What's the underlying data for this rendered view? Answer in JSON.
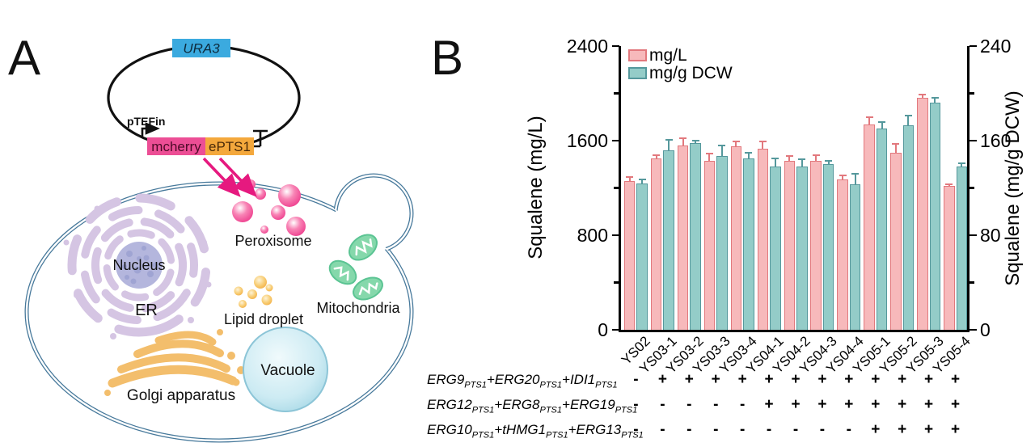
{
  "panelA": {
    "label": "A",
    "plasmid": {
      "marker": "URA3",
      "promoter": "pTEFin",
      "gene1": "mcherry",
      "gene2": "ePTS1"
    },
    "organelles": {
      "nucleus": "Nucleus",
      "er": "ER",
      "peroxisome": "Peroxisome",
      "lipid": "Lipid droplet",
      "mitochondria": "Mitochondria",
      "vacuole": "Vacuole",
      "golgi": "Golgi apparatus"
    },
    "colors": {
      "marker_box": "#3BAADF",
      "gene1_box": "#EC4E95",
      "gene2_box": "#F4A83C",
      "arrow": "#E6197F",
      "cell_outline": "#47799B"
    }
  },
  "panelB": {
    "label": "B"
  },
  "chart_data": {
    "type": "bar",
    "title": "",
    "categories": [
      "YS02",
      "YS03-1",
      "YS03-2",
      "YS03-3",
      "YS03-4",
      "YS04-1",
      "YS04-2",
      "YS04-3",
      "YS04-4",
      "YS05-1",
      "YS05-2",
      "YS05-3",
      "YS05-4"
    ],
    "series": [
      {
        "name": "mg/L",
        "axis": "left",
        "fill": "#F7B9BB",
        "edge": "#E2787D",
        "values": [
          1260,
          1450,
          1560,
          1430,
          1550,
          1530,
          1430,
          1430,
          1270,
          1740,
          1500,
          1960,
          1220
        ],
        "errors": [
          35,
          30,
          60,
          60,
          40,
          65,
          40,
          45,
          35,
          55,
          75,
          30,
          10
        ]
      },
      {
        "name": "mg/g DCW",
        "axis": "right",
        "fill": "#94CCC8",
        "edge": "#55989C",
        "values": [
          124,
          152,
          158,
          147,
          145,
          138,
          138,
          140,
          123,
          170,
          173,
          192,
          138
        ],
        "errors": [
          3,
          9,
          2,
          9,
          5,
          7,
          6,
          3,
          9,
          6,
          8,
          4,
          3
        ]
      }
    ],
    "left_axis": {
      "label": "Squalene (mg/L)",
      "lim": [
        0,
        2400
      ],
      "major_ticks": [
        2400,
        1600,
        800,
        0
      ],
      "minor_ticks": [
        2000,
        1200,
        400
      ]
    },
    "right_axis": {
      "label": "Squalene (mg/g DCW)",
      "lim": [
        0,
        240
      ],
      "major_ticks": [
        240,
        160,
        80,
        0
      ],
      "minor_ticks": [
        200,
        120,
        40
      ]
    },
    "grid": false,
    "legend_position": "top-left-inside",
    "genotype_rows": [
      {
        "segments": [
          {
            "t": "ERG9",
            "sub": "PTS1"
          },
          {
            "t": "+ERG20",
            "sub": "PTS1"
          },
          {
            "t": "+IDI1",
            "sub": "PTS1"
          }
        ],
        "marks": [
          "-",
          "+",
          "+",
          "+",
          "+",
          "+",
          "+",
          "+",
          "+",
          "+",
          "+",
          "+",
          "+"
        ]
      },
      {
        "segments": [
          {
            "t": "ERG12",
            "sub": "PTS1"
          },
          {
            "t": "+ERG8",
            "sub": "PTS1"
          },
          {
            "t": "+ERG19",
            "sub": "PTS1"
          }
        ],
        "marks": [
          "-",
          "-",
          "-",
          "-",
          "-",
          "+",
          "+",
          "+",
          "+",
          "+",
          "+",
          "+",
          "+"
        ]
      },
      {
        "segments": [
          {
            "t": "ERG10",
            "sub": "PTS1"
          },
          {
            "t": "+tHMG1",
            "sub": "PTS1"
          },
          {
            "t": "+ERG13",
            "sub": "PTS1"
          }
        ],
        "marks": [
          "-",
          "-",
          "-",
          "-",
          "-",
          "-",
          "-",
          "-",
          "-",
          "+",
          "+",
          "+",
          "+"
        ]
      }
    ]
  }
}
